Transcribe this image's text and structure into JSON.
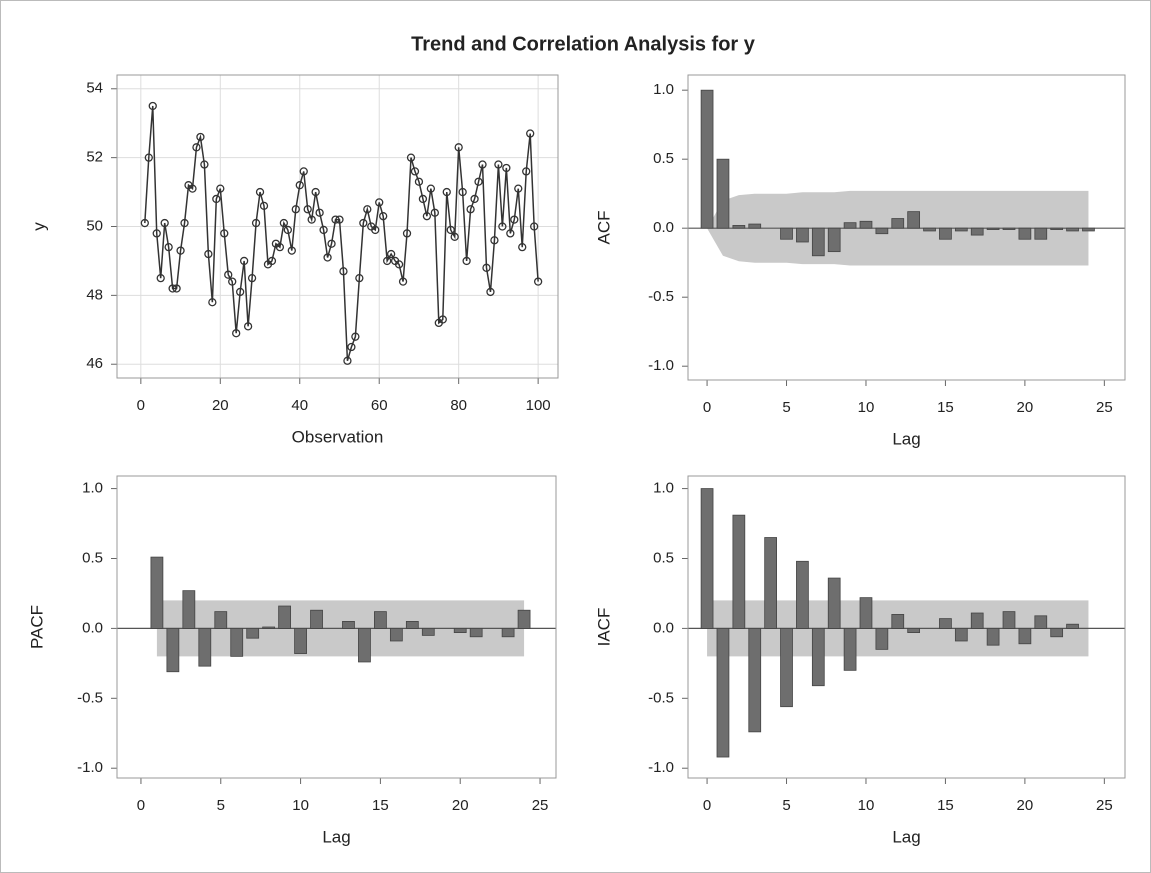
{
  "title": "Trend and Correlation Analysis for y",
  "chart_data": [
    {
      "type": "line",
      "xlabel": "Observation",
      "ylabel": "y",
      "color": "#333333",
      "marker": "circle",
      "grid": true,
      "x": [
        1,
        2,
        3,
        4,
        5,
        6,
        7,
        8,
        9,
        10,
        11,
        12,
        13,
        14,
        15,
        16,
        17,
        18,
        19,
        20,
        21,
        22,
        23,
        24,
        25,
        26,
        27,
        28,
        29,
        30,
        31,
        32,
        33,
        34,
        35,
        36,
        37,
        38,
        39,
        40,
        41,
        42,
        43,
        44,
        45,
        46,
        47,
        48,
        49,
        50,
        51,
        52,
        53,
        54,
        55,
        56,
        57,
        58,
        59,
        60,
        61,
        62,
        63,
        64,
        65,
        66,
        67,
        68,
        69,
        70,
        71,
        72,
        73,
        74,
        75,
        76,
        77,
        78,
        79,
        80,
        81,
        82,
        83,
        84,
        85,
        86,
        87,
        88,
        89,
        90,
        91,
        92,
        93,
        94,
        95,
        96,
        97,
        98,
        99,
        100
      ],
      "values": [
        50.1,
        52.0,
        53.5,
        49.8,
        48.5,
        50.1,
        49.4,
        48.2,
        48.2,
        49.3,
        50.1,
        51.2,
        51.1,
        52.3,
        52.6,
        51.8,
        49.2,
        47.8,
        50.8,
        51.1,
        49.8,
        48.6,
        48.4,
        46.9,
        48.1,
        49.0,
        47.1,
        48.5,
        50.1,
        51.0,
        50.6,
        48.9,
        49.0,
        49.5,
        49.4,
        50.1,
        49.9,
        49.3,
        50.5,
        51.2,
        51.6,
        50.5,
        50.2,
        51.0,
        50.4,
        49.9,
        49.1,
        49.5,
        50.2,
        50.2,
        48.7,
        46.1,
        46.5,
        46.8,
        48.5,
        50.1,
        50.5,
        50.0,
        49.9,
        50.7,
        50.3,
        49.0,
        49.2,
        49.0,
        48.9,
        48.4,
        49.8,
        52.0,
        51.6,
        51.3,
        50.8,
        50.3,
        51.1,
        50.4,
        47.2,
        47.3,
        51.0,
        49.9,
        49.7,
        52.3,
        51.0,
        49.0,
        50.5,
        50.8,
        51.3,
        51.8,
        48.8,
        48.1,
        49.6,
        51.8,
        50.0,
        51.7,
        49.8,
        50.2,
        51.1,
        49.4,
        51.6,
        52.7,
        50.0,
        48.4
      ],
      "xlim": [
        -6,
        105
      ],
      "ylim": [
        45.6,
        54.4
      ],
      "xticks": [
        0,
        20,
        40,
        60,
        80,
        100
      ],
      "yticks": [
        46,
        48,
        50,
        52,
        54
      ]
    },
    {
      "type": "bar",
      "xlabel": "Lag",
      "ylabel": "ACF",
      "color": "#6e6e6e",
      "band_color": "#c9c9c9",
      "grid": false,
      "x": [
        0,
        1,
        2,
        3,
        4,
        5,
        6,
        7,
        8,
        9,
        10,
        11,
        12,
        13,
        14,
        15,
        16,
        17,
        18,
        19,
        20,
        21,
        22,
        23,
        24
      ],
      "values": [
        1.0,
        0.5,
        0.02,
        0.03,
        0.0,
        -0.08,
        -0.1,
        -0.2,
        -0.17,
        0.04,
        0.05,
        -0.04,
        0.07,
        0.12,
        -0.02,
        -0.08,
        -0.02,
        -0.05,
        -0.01,
        -0.01,
        -0.08,
        -0.08,
        -0.01,
        -0.02,
        -0.02
      ],
      "band_upper": [
        0.0,
        0.2,
        0.24,
        0.25,
        0.25,
        0.25,
        0.26,
        0.26,
        0.26,
        0.27,
        0.27,
        0.27,
        0.27,
        0.27,
        0.27,
        0.27,
        0.27,
        0.27,
        0.27,
        0.27,
        0.27,
        0.27,
        0.27,
        0.27,
        0.27
      ],
      "band_lower": [
        0.0,
        -0.2,
        -0.24,
        -0.25,
        -0.25,
        -0.25,
        -0.26,
        -0.26,
        -0.26,
        -0.27,
        -0.27,
        -0.27,
        -0.27,
        -0.27,
        -0.27,
        -0.27,
        -0.27,
        -0.27,
        -0.27,
        -0.27,
        -0.27,
        -0.27,
        -0.27,
        -0.27,
        -0.27
      ],
      "xlim": [
        -1.2,
        26.3
      ],
      "ylim": [
        -1.1,
        1.11
      ],
      "xticks": [
        0,
        5,
        10,
        15,
        20,
        25
      ],
      "yticks": [
        {
          "value": 1,
          "label": "1.0"
        },
        0.5,
        {
          "value": 0,
          "label": "0.0"
        },
        -0.5,
        {
          "value": -1,
          "label": "-1.0"
        }
      ]
    },
    {
      "type": "bar",
      "xlabel": "Lag",
      "ylabel": "PACF",
      "color": "#6e6e6e",
      "band_color": "#c9c9c9",
      "grid": false,
      "x": [
        1,
        2,
        3,
        4,
        5,
        6,
        7,
        8,
        9,
        10,
        11,
        12,
        13,
        14,
        15,
        16,
        17,
        18,
        19,
        20,
        21,
        22,
        23,
        24
      ],
      "values": [
        0.51,
        -0.31,
        0.27,
        -0.27,
        0.12,
        -0.2,
        -0.07,
        0.01,
        0.16,
        -0.18,
        0.13,
        0.0,
        0.05,
        -0.24,
        0.12,
        -0.09,
        0.05,
        -0.05,
        0.0,
        -0.03,
        -0.06,
        0.0,
        -0.06,
        0.13
      ],
      "band_upper": [
        0.2,
        0.2,
        0.2,
        0.2,
        0.2,
        0.2,
        0.2,
        0.2,
        0.2,
        0.2,
        0.2,
        0.2,
        0.2,
        0.2,
        0.2,
        0.2,
        0.2,
        0.2,
        0.2,
        0.2,
        0.2,
        0.2,
        0.2,
        0.2
      ],
      "band_lower": [
        -0.2,
        -0.2,
        -0.2,
        -0.2,
        -0.2,
        -0.2,
        -0.2,
        -0.2,
        -0.2,
        -0.2,
        -0.2,
        -0.2,
        -0.2,
        -0.2,
        -0.2,
        -0.2,
        -0.2,
        -0.2,
        -0.2,
        -0.2,
        -0.2,
        -0.2,
        -0.2,
        -0.2
      ],
      "xlim": [
        -1.5,
        26
      ],
      "ylim": [
        -1.07,
        1.09
      ],
      "xticks": [
        0,
        5,
        10,
        15,
        20,
        25
      ],
      "yticks": [
        {
          "value": 1,
          "label": "1.0"
        },
        0.5,
        {
          "value": 0,
          "label": "0.0"
        },
        -0.5,
        {
          "value": -1,
          "label": "-1.0"
        }
      ]
    },
    {
      "type": "bar",
      "xlabel": "Lag",
      "ylabel": "IACF",
      "color": "#6e6e6e",
      "band_color": "#c9c9c9",
      "grid": false,
      "x": [
        0,
        1,
        2,
        3,
        4,
        5,
        6,
        7,
        8,
        9,
        10,
        11,
        12,
        13,
        14,
        15,
        16,
        17,
        18,
        19,
        20,
        21,
        22,
        23,
        24
      ],
      "values": [
        1.0,
        -0.92,
        0.81,
        -0.74,
        0.65,
        -0.56,
        0.48,
        -0.41,
        0.36,
        -0.3,
        0.22,
        -0.15,
        0.1,
        -0.03,
        0.0,
        0.07,
        -0.09,
        0.11,
        -0.12,
        0.12,
        -0.11,
        0.09,
        -0.06,
        0.03,
        0.0
      ],
      "band_upper": [
        0.2,
        0.2,
        0.2,
        0.2,
        0.2,
        0.2,
        0.2,
        0.2,
        0.2,
        0.2,
        0.2,
        0.2,
        0.2,
        0.2,
        0.2,
        0.2,
        0.2,
        0.2,
        0.2,
        0.2,
        0.2,
        0.2,
        0.2,
        0.2,
        0.2
      ],
      "band_lower": [
        -0.2,
        -0.2,
        -0.2,
        -0.2,
        -0.2,
        -0.2,
        -0.2,
        -0.2,
        -0.2,
        -0.2,
        -0.2,
        -0.2,
        -0.2,
        -0.2,
        -0.2,
        -0.2,
        -0.2,
        -0.2,
        -0.2,
        -0.2,
        -0.2,
        -0.2,
        -0.2,
        -0.2,
        -0.2
      ],
      "xlim": [
        -1.2,
        26.3
      ],
      "ylim": [
        -1.07,
        1.09
      ],
      "xticks": [
        0,
        5,
        10,
        15,
        20,
        25
      ],
      "yticks": [
        {
          "value": 1,
          "label": "1.0"
        },
        0.5,
        {
          "value": 0,
          "label": "0.0"
        },
        -0.5,
        {
          "value": -1,
          "label": "-1.0"
        }
      ]
    }
  ]
}
